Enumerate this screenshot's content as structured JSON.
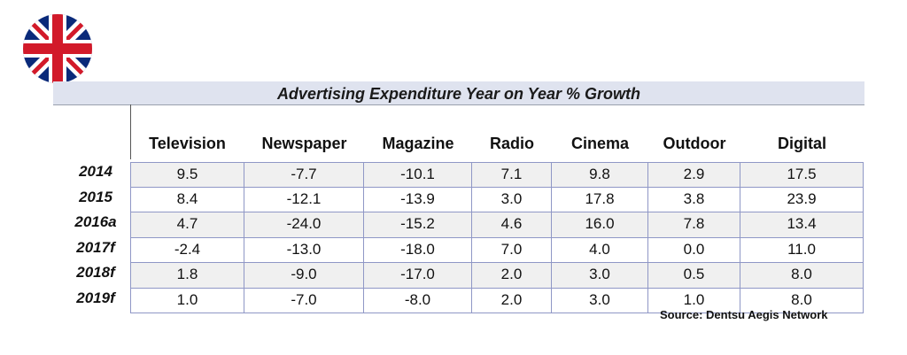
{
  "chart_data": {
    "type": "table",
    "title": "Advertising Expenditure Year on Year % Growth",
    "columns": [
      "Television",
      "Newspaper",
      "Magazine",
      "Radio",
      "Cinema",
      "Outdoor",
      "Digital"
    ],
    "rows": [
      {
        "label": "2014",
        "values": [
          "9.5",
          "-7.7",
          "-10.1",
          "7.1",
          "9.8",
          "2.9",
          "17.5"
        ]
      },
      {
        "label": "2015",
        "values": [
          "8.4",
          "-12.1",
          "-13.9",
          "3.0",
          "17.8",
          "3.8",
          "23.9"
        ]
      },
      {
        "label": "2016a",
        "values": [
          "4.7",
          "-24.0",
          "-15.2",
          "4.6",
          "16.0",
          "7.8",
          "13.4"
        ]
      },
      {
        "label": "2017f",
        "values": [
          "-2.4",
          "-13.0",
          "-18.0",
          "7.0",
          "4.0",
          "0.0",
          "11.0"
        ]
      },
      {
        "label": "2018f",
        "values": [
          "1.8",
          "-9.0",
          "-17.0",
          "2.0",
          "3.0",
          "0.5",
          "8.0"
        ]
      },
      {
        "label": "2019f",
        "values": [
          "1.0",
          "-7.0",
          "-8.0",
          "2.0",
          "3.0",
          "1.0",
          "8.0"
        ]
      }
    ],
    "source": "Source: Dentsu Aegis Network"
  },
  "flag": {
    "icon": "uk-flag-icon",
    "colors": {
      "blue": "#0a2a7a",
      "red": "#d21a2a",
      "white": "#ffffff"
    }
  },
  "colors": {
    "title_band": "#dfe3ef",
    "odd_row": "#f0f0f0",
    "even_row": "#ffffff",
    "grid_line": "#8f97c6"
  }
}
